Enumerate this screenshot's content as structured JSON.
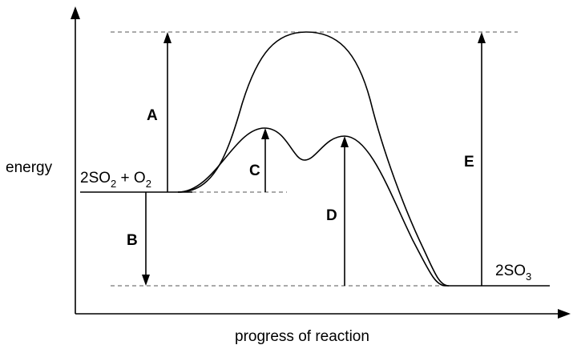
{
  "y_axis_label": "energy",
  "x_axis_label": "progress of reaction",
  "reactants": {
    "main": "2SO",
    "sub1": "2",
    "plus": " + O",
    "sub2": "2"
  },
  "products": {
    "main": "2SO",
    "sub": "3"
  },
  "arrow_labels": {
    "a": "A",
    "b": "B",
    "c": "C",
    "d": "D",
    "e": "E"
  }
}
